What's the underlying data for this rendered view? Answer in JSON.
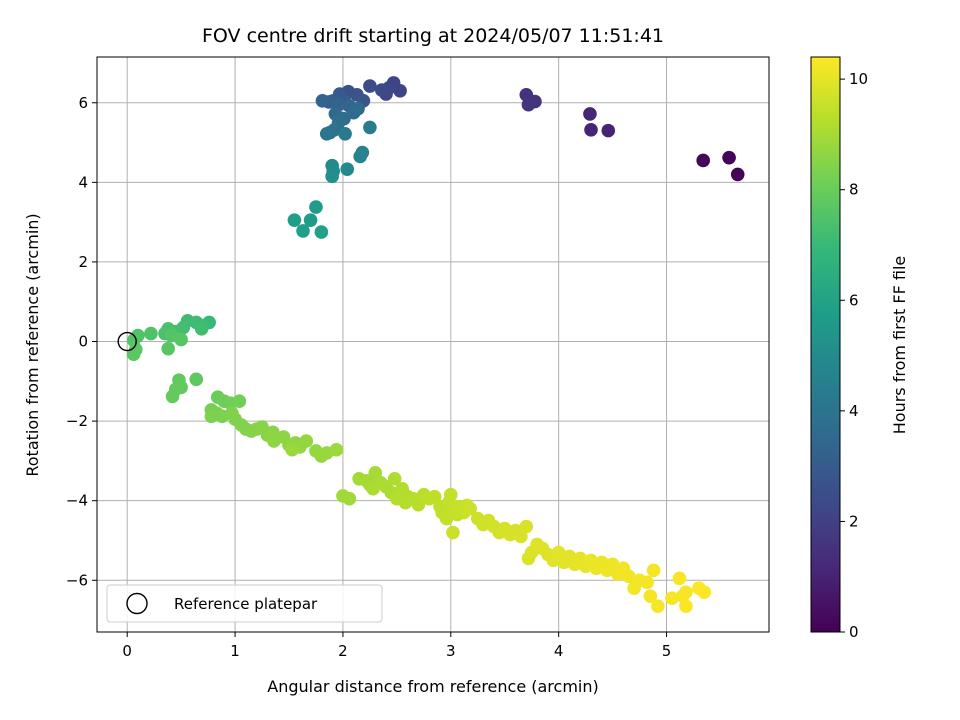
{
  "chart_data": {
    "type": "scatter",
    "title": "FOV centre drift starting at 2024/05/07 11:51:41",
    "xlabel": "Angular distance from reference (arcmin)",
    "ylabel": "Rotation from reference (arcmin)",
    "xlim": [
      -0.28,
      5.95
    ],
    "ylim": [
      -7.3,
      7.15
    ],
    "xticks": [
      0,
      1,
      2,
      3,
      4,
      5
    ],
    "yticks": [
      -6,
      -4,
      -2,
      0,
      2,
      4,
      6
    ],
    "grid": true,
    "colorbar": {
      "label": "Hours from first FF file",
      "range": [
        0,
        10.4
      ],
      "ticks": [
        0,
        2,
        4,
        6,
        8,
        10
      ],
      "colormap": "viridis",
      "stops": [
        "#440154",
        "#482878",
        "#3e4989",
        "#31688e",
        "#26828e",
        "#1f9e89",
        "#35b779",
        "#6ece58",
        "#b5de2b",
        "#fde725"
      ]
    },
    "reference": {
      "x": 0,
      "y": 0,
      "label": "Reference platepar"
    },
    "legend_position": "lower-left",
    "points": [
      {
        "x": 5.66,
        "y": 4.2,
        "h": 0.05
      },
      {
        "x": 5.58,
        "y": 4.62,
        "h": 0.1
      },
      {
        "x": 5.34,
        "y": 4.55,
        "h": 0.25
      },
      {
        "x": 4.46,
        "y": 5.3,
        "h": 1.0
      },
      {
        "x": 4.3,
        "y": 5.32,
        "h": 1.05
      },
      {
        "x": 4.29,
        "y": 5.72,
        "h": 1.1
      },
      {
        "x": 3.7,
        "y": 6.2,
        "h": 1.5
      },
      {
        "x": 3.78,
        "y": 6.03,
        "h": 1.55
      },
      {
        "x": 3.72,
        "y": 5.95,
        "h": 1.6
      },
      {
        "x": 2.47,
        "y": 6.5,
        "h": 2.1
      },
      {
        "x": 2.53,
        "y": 6.3,
        "h": 2.15
      },
      {
        "x": 2.43,
        "y": 6.38,
        "h": 2.2
      },
      {
        "x": 2.4,
        "y": 6.22,
        "h": 2.25
      },
      {
        "x": 2.36,
        "y": 6.32,
        "h": 2.3
      },
      {
        "x": 2.25,
        "y": 6.42,
        "h": 2.4
      },
      {
        "x": 2.05,
        "y": 6.28,
        "h": 2.6
      },
      {
        "x": 2.13,
        "y": 6.2,
        "h": 2.7
      },
      {
        "x": 2.19,
        "y": 6.05,
        "h": 2.8
      },
      {
        "x": 1.97,
        "y": 6.22,
        "h": 2.9
      },
      {
        "x": 2.02,
        "y": 6.02,
        "h": 3.0
      },
      {
        "x": 1.91,
        "y": 6.05,
        "h": 3.1
      },
      {
        "x": 1.87,
        "y": 6.02,
        "h": 3.2
      },
      {
        "x": 1.81,
        "y": 6.05,
        "h": 3.3
      },
      {
        "x": 1.96,
        "y": 5.95,
        "h": 3.35
      },
      {
        "x": 2.06,
        "y": 5.92,
        "h": 3.4
      },
      {
        "x": 2.14,
        "y": 5.85,
        "h": 3.5
      },
      {
        "x": 2.1,
        "y": 5.75,
        "h": 3.55
      },
      {
        "x": 1.93,
        "y": 5.72,
        "h": 3.6
      },
      {
        "x": 2.01,
        "y": 5.6,
        "h": 3.7
      },
      {
        "x": 1.96,
        "y": 5.5,
        "h": 3.8
      },
      {
        "x": 1.92,
        "y": 5.32,
        "h": 3.9
      },
      {
        "x": 1.88,
        "y": 5.25,
        "h": 4.0
      },
      {
        "x": 1.85,
        "y": 5.22,
        "h": 4.1
      },
      {
        "x": 2.02,
        "y": 5.22,
        "h": 4.2
      },
      {
        "x": 2.25,
        "y": 5.38,
        "h": 4.3
      },
      {
        "x": 2.18,
        "y": 4.75,
        "h": 4.6
      },
      {
        "x": 2.16,
        "y": 4.65,
        "h": 4.7
      },
      {
        "x": 2.04,
        "y": 4.33,
        "h": 4.9
      },
      {
        "x": 1.9,
        "y": 4.42,
        "h": 5.0
      },
      {
        "x": 1.91,
        "y": 4.28,
        "h": 5.05
      },
      {
        "x": 1.9,
        "y": 4.15,
        "h": 5.1
      },
      {
        "x": 1.75,
        "y": 3.38,
        "h": 5.6
      },
      {
        "x": 1.7,
        "y": 3.05,
        "h": 5.7
      },
      {
        "x": 1.55,
        "y": 3.05,
        "h": 5.8
      },
      {
        "x": 1.63,
        "y": 2.78,
        "h": 5.85
      },
      {
        "x": 1.8,
        "y": 2.75,
        "h": 5.9
      },
      {
        "x": 0.76,
        "y": 0.48,
        "h": 7.0
      },
      {
        "x": 0.7,
        "y": 0.4,
        "h": 7.05
      },
      {
        "x": 0.64,
        "y": 0.48,
        "h": 7.1
      },
      {
        "x": 0.56,
        "y": 0.52,
        "h": 7.15
      },
      {
        "x": 0.69,
        "y": 0.32,
        "h": 7.2
      },
      {
        "x": 0.52,
        "y": 0.35,
        "h": 7.25
      },
      {
        "x": 0.45,
        "y": 0.25,
        "h": 7.3
      },
      {
        "x": 0.38,
        "y": 0.32,
        "h": 7.35
      },
      {
        "x": 0.35,
        "y": 0.2,
        "h": 7.4
      },
      {
        "x": 0.22,
        "y": 0.2,
        "h": 7.45
      },
      {
        "x": 0.1,
        "y": 0.15,
        "h": 7.5
      },
      {
        "x": 0.06,
        "y": 0.03,
        "h": 7.55
      },
      {
        "x": 0.41,
        "y": 0.15,
        "h": 7.6
      },
      {
        "x": 0.5,
        "y": 0.05,
        "h": 7.62
      },
      {
        "x": 0.38,
        "y": -0.18,
        "h": 7.65
      },
      {
        "x": 0.08,
        "y": -0.2,
        "h": 7.68
      },
      {
        "x": 0.06,
        "y": -0.32,
        "h": 7.7
      },
      {
        "x": 0.64,
        "y": -0.95,
        "h": 7.8
      },
      {
        "x": 0.48,
        "y": -0.97,
        "h": 7.82
      },
      {
        "x": 0.5,
        "y": -1.15,
        "h": 7.85
      },
      {
        "x": 0.45,
        "y": -1.2,
        "h": 7.88
      },
      {
        "x": 0.42,
        "y": -1.38,
        "h": 7.9
      },
      {
        "x": 0.84,
        "y": -1.4,
        "h": 8.0
      },
      {
        "x": 0.9,
        "y": -1.5,
        "h": 8.05
      },
      {
        "x": 0.96,
        "y": -1.55,
        "h": 8.1
      },
      {
        "x": 1.04,
        "y": -1.5,
        "h": 8.15
      },
      {
        "x": 0.78,
        "y": -1.72,
        "h": 8.2
      },
      {
        "x": 0.83,
        "y": -1.8,
        "h": 8.25
      },
      {
        "x": 0.78,
        "y": -1.88,
        "h": 8.3
      },
      {
        "x": 0.88,
        "y": -1.88,
        "h": 8.32
      },
      {
        "x": 0.97,
        "y": -1.8,
        "h": 8.35
      },
      {
        "x": 1.0,
        "y": -1.95,
        "h": 8.38
      },
      {
        "x": 1.06,
        "y": -2.1,
        "h": 8.4
      },
      {
        "x": 1.1,
        "y": -2.2,
        "h": 8.42
      },
      {
        "x": 1.15,
        "y": -2.25,
        "h": 8.45
      },
      {
        "x": 1.2,
        "y": -2.2,
        "h": 8.48
      },
      {
        "x": 1.25,
        "y": -2.15,
        "h": 8.5
      },
      {
        "x": 1.3,
        "y": -2.35,
        "h": 8.52
      },
      {
        "x": 1.35,
        "y": -2.28,
        "h": 8.55
      },
      {
        "x": 1.36,
        "y": -2.5,
        "h": 8.58
      },
      {
        "x": 1.45,
        "y": -2.4,
        "h": 8.6
      },
      {
        "x": 1.5,
        "y": -2.6,
        "h": 8.62
      },
      {
        "x": 1.56,
        "y": -2.55,
        "h": 8.65
      },
      {
        "x": 1.6,
        "y": -2.65,
        "h": 8.68
      },
      {
        "x": 1.66,
        "y": -2.5,
        "h": 8.7
      },
      {
        "x": 1.75,
        "y": -2.75,
        "h": 8.72
      },
      {
        "x": 1.8,
        "y": -2.88,
        "h": 8.75
      },
      {
        "x": 1.85,
        "y": -2.8,
        "h": 8.78
      },
      {
        "x": 1.94,
        "y": -2.72,
        "h": 8.8
      },
      {
        "x": 1.53,
        "y": -2.72,
        "h": 8.82
      },
      {
        "x": 2.0,
        "y": -3.88,
        "h": 8.9
      },
      {
        "x": 2.06,
        "y": -3.95,
        "h": 8.92
      },
      {
        "x": 2.15,
        "y": -3.45,
        "h": 8.95
      },
      {
        "x": 2.22,
        "y": -3.5,
        "h": 8.98
      },
      {
        "x": 2.3,
        "y": -3.3,
        "h": 9.0
      },
      {
        "x": 2.25,
        "y": -3.6,
        "h": 9.02
      },
      {
        "x": 2.35,
        "y": -3.55,
        "h": 9.05
      },
      {
        "x": 2.28,
        "y": -3.7,
        "h": 9.08
      },
      {
        "x": 2.4,
        "y": -3.65,
        "h": 9.1
      },
      {
        "x": 2.45,
        "y": -3.8,
        "h": 9.12
      },
      {
        "x": 2.48,
        "y": -3.45,
        "h": 9.15
      },
      {
        "x": 2.55,
        "y": -3.7,
        "h": 9.18
      },
      {
        "x": 2.6,
        "y": -3.9,
        "h": 9.2
      },
      {
        "x": 2.5,
        "y": -3.95,
        "h": 9.22
      },
      {
        "x": 2.58,
        "y": -4.05,
        "h": 9.25
      },
      {
        "x": 2.65,
        "y": -3.95,
        "h": 9.28
      },
      {
        "x": 2.7,
        "y": -4.1,
        "h": 9.3
      },
      {
        "x": 2.75,
        "y": -3.85,
        "h": 9.32
      },
      {
        "x": 2.8,
        "y": -3.95,
        "h": 9.35
      },
      {
        "x": 2.85,
        "y": -3.9,
        "h": 9.38
      },
      {
        "x": 2.9,
        "y": -4.15,
        "h": 9.4
      },
      {
        "x": 2.92,
        "y": -4.3,
        "h": 9.42
      },
      {
        "x": 2.96,
        "y": -4.45,
        "h": 9.44
      },
      {
        "x": 2.98,
        "y": -4.05,
        "h": 9.46
      },
      {
        "x": 3.0,
        "y": -3.85,
        "h": 9.48
      },
      {
        "x": 3.03,
        "y": -4.2,
        "h": 9.5
      },
      {
        "x": 3.06,
        "y": -4.35,
        "h": 9.52
      },
      {
        "x": 3.08,
        "y": -4.15,
        "h": 9.54
      },
      {
        "x": 3.12,
        "y": -4.3,
        "h": 9.56
      },
      {
        "x": 3.15,
        "y": -4.12,
        "h": 9.58
      },
      {
        "x": 3.02,
        "y": -4.8,
        "h": 9.6
      },
      {
        "x": 3.18,
        "y": -4.2,
        "h": 9.62
      },
      {
        "x": 3.25,
        "y": -4.45,
        "h": 9.64
      },
      {
        "x": 3.3,
        "y": -4.6,
        "h": 9.66
      },
      {
        "x": 3.35,
        "y": -4.5,
        "h": 9.68
      },
      {
        "x": 3.4,
        "y": -4.65,
        "h": 9.7
      },
      {
        "x": 3.45,
        "y": -4.8,
        "h": 9.72
      },
      {
        "x": 3.5,
        "y": -4.7,
        "h": 9.74
      },
      {
        "x": 3.55,
        "y": -4.85,
        "h": 9.76
      },
      {
        "x": 3.6,
        "y": -4.75,
        "h": 9.78
      },
      {
        "x": 3.65,
        "y": -4.9,
        "h": 9.8
      },
      {
        "x": 3.7,
        "y": -4.65,
        "h": 9.82
      },
      {
        "x": 3.72,
        "y": -5.45,
        "h": 9.84
      },
      {
        "x": 3.75,
        "y": -5.3,
        "h": 9.86
      },
      {
        "x": 3.8,
        "y": -5.1,
        "h": 9.88
      },
      {
        "x": 3.85,
        "y": -5.2,
        "h": 9.9
      },
      {
        "x": 3.9,
        "y": -5.35,
        "h": 9.92
      },
      {
        "x": 3.95,
        "y": -5.5,
        "h": 9.94
      },
      {
        "x": 4.0,
        "y": -5.3,
        "h": 9.96
      },
      {
        "x": 4.05,
        "y": -5.55,
        "h": 9.98
      },
      {
        "x": 4.1,
        "y": -5.4,
        "h": 10.0
      },
      {
        "x": 4.15,
        "y": -5.6,
        "h": 10.02
      },
      {
        "x": 4.2,
        "y": -5.45,
        "h": 10.04
      },
      {
        "x": 4.25,
        "y": -5.65,
        "h": 10.06
      },
      {
        "x": 4.3,
        "y": -5.5,
        "h": 10.08
      },
      {
        "x": 4.35,
        "y": -5.7,
        "h": 10.1
      },
      {
        "x": 4.4,
        "y": -5.55,
        "h": 10.12
      },
      {
        "x": 4.45,
        "y": -5.75,
        "h": 10.14
      },
      {
        "x": 4.5,
        "y": -5.6,
        "h": 10.16
      },
      {
        "x": 4.55,
        "y": -5.85,
        "h": 10.18
      },
      {
        "x": 4.6,
        "y": -5.7,
        "h": 10.2
      },
      {
        "x": 4.65,
        "y": -5.9,
        "h": 10.21
      },
      {
        "x": 4.7,
        "y": -6.2,
        "h": 10.22
      },
      {
        "x": 4.75,
        "y": -6.0,
        "h": 10.23
      },
      {
        "x": 4.82,
        "y": -6.05,
        "h": 10.24
      },
      {
        "x": 4.88,
        "y": -5.75,
        "h": 10.25
      },
      {
        "x": 4.85,
        "y": -6.4,
        "h": 10.26
      },
      {
        "x": 4.92,
        "y": -6.65,
        "h": 10.27
      },
      {
        "x": 5.05,
        "y": -6.45,
        "h": 10.28
      },
      {
        "x": 5.15,
        "y": -6.4,
        "h": 10.3
      },
      {
        "x": 5.18,
        "y": -6.3,
        "h": 10.31
      },
      {
        "x": 5.12,
        "y": -5.95,
        "h": 10.32
      },
      {
        "x": 5.18,
        "y": -6.65,
        "h": 10.33
      },
      {
        "x": 5.3,
        "y": -6.2,
        "h": 10.35
      },
      {
        "x": 5.35,
        "y": -6.3,
        "h": 10.36
      }
    ]
  }
}
